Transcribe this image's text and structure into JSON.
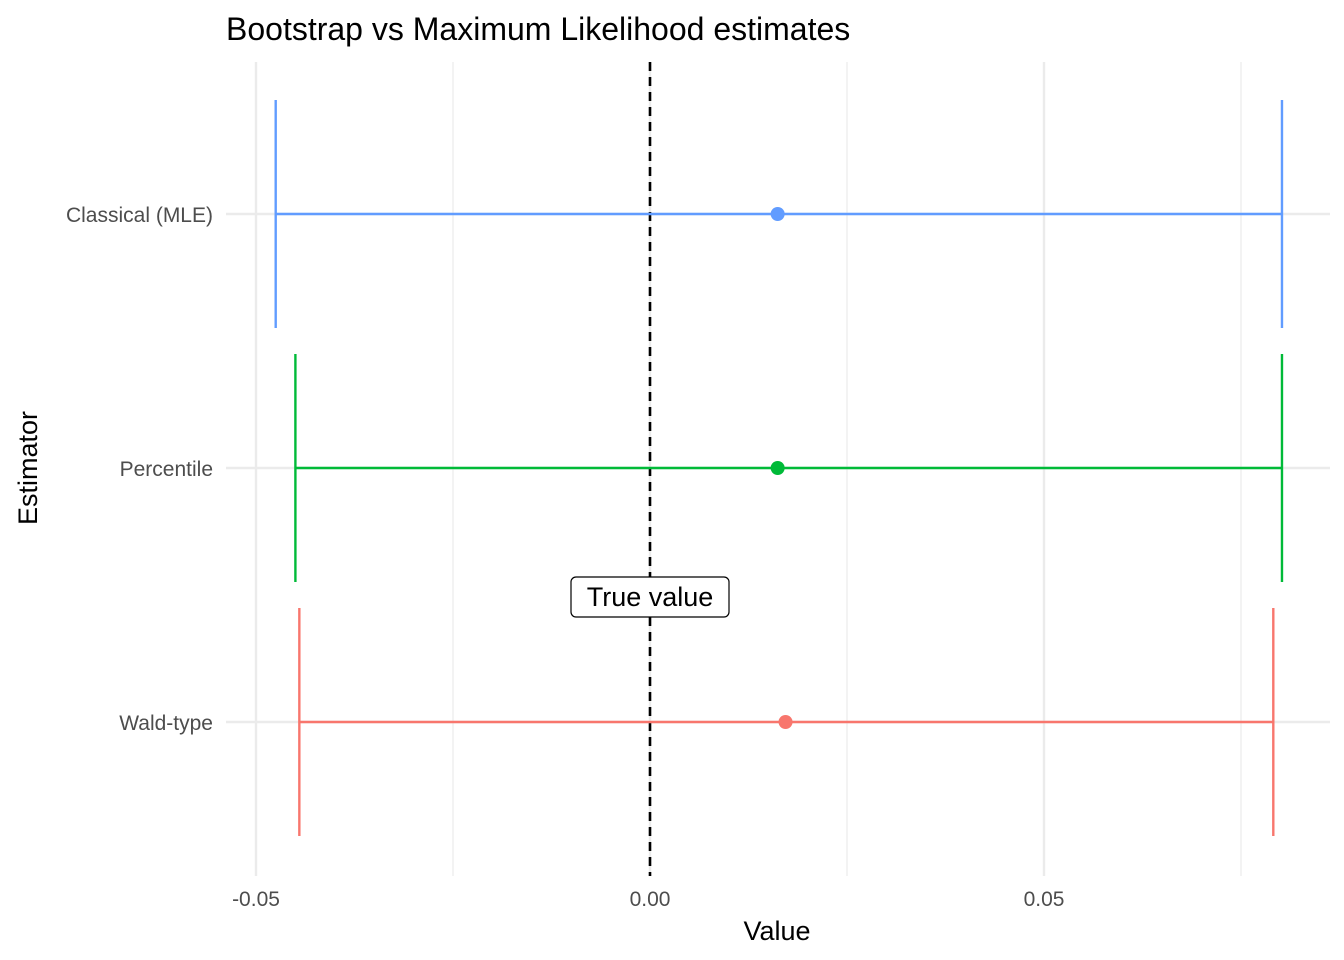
{
  "chart_data": {
    "type": "errorbar",
    "title": "Bootstrap vs Maximum Likelihood estimates",
    "xlabel": "Value",
    "ylabel": "Estimator",
    "xlim": [
      -0.0525,
      0.0865
    ],
    "x_ticks": [
      -0.05,
      0.0,
      0.05
    ],
    "x_tick_labels": [
      "-0.05",
      "0.00",
      "0.05"
    ],
    "x_minor_ticks": [
      -0.025,
      0.025,
      0.075
    ],
    "categories": [
      "Classical (MLE)",
      "Percentile",
      "Wald-type"
    ],
    "series": [
      {
        "category": "Classical (MLE)",
        "estimate": 0.0162,
        "lower": -0.0475,
        "upper": 0.0802,
        "color": "#619CFF"
      },
      {
        "category": "Percentile",
        "estimate": 0.0162,
        "lower": -0.045,
        "upper": 0.0802,
        "color": "#00BA38"
      },
      {
        "category": "Wald-type",
        "estimate": 0.0172,
        "lower": -0.0445,
        "upper": 0.0791,
        "color": "#F8766D"
      }
    ],
    "reference_line": {
      "x": 0.0,
      "style": "dashed",
      "color": "#000000"
    },
    "annotation": {
      "text": "True value",
      "x": 0.0
    },
    "grid": true,
    "legend": "none"
  }
}
